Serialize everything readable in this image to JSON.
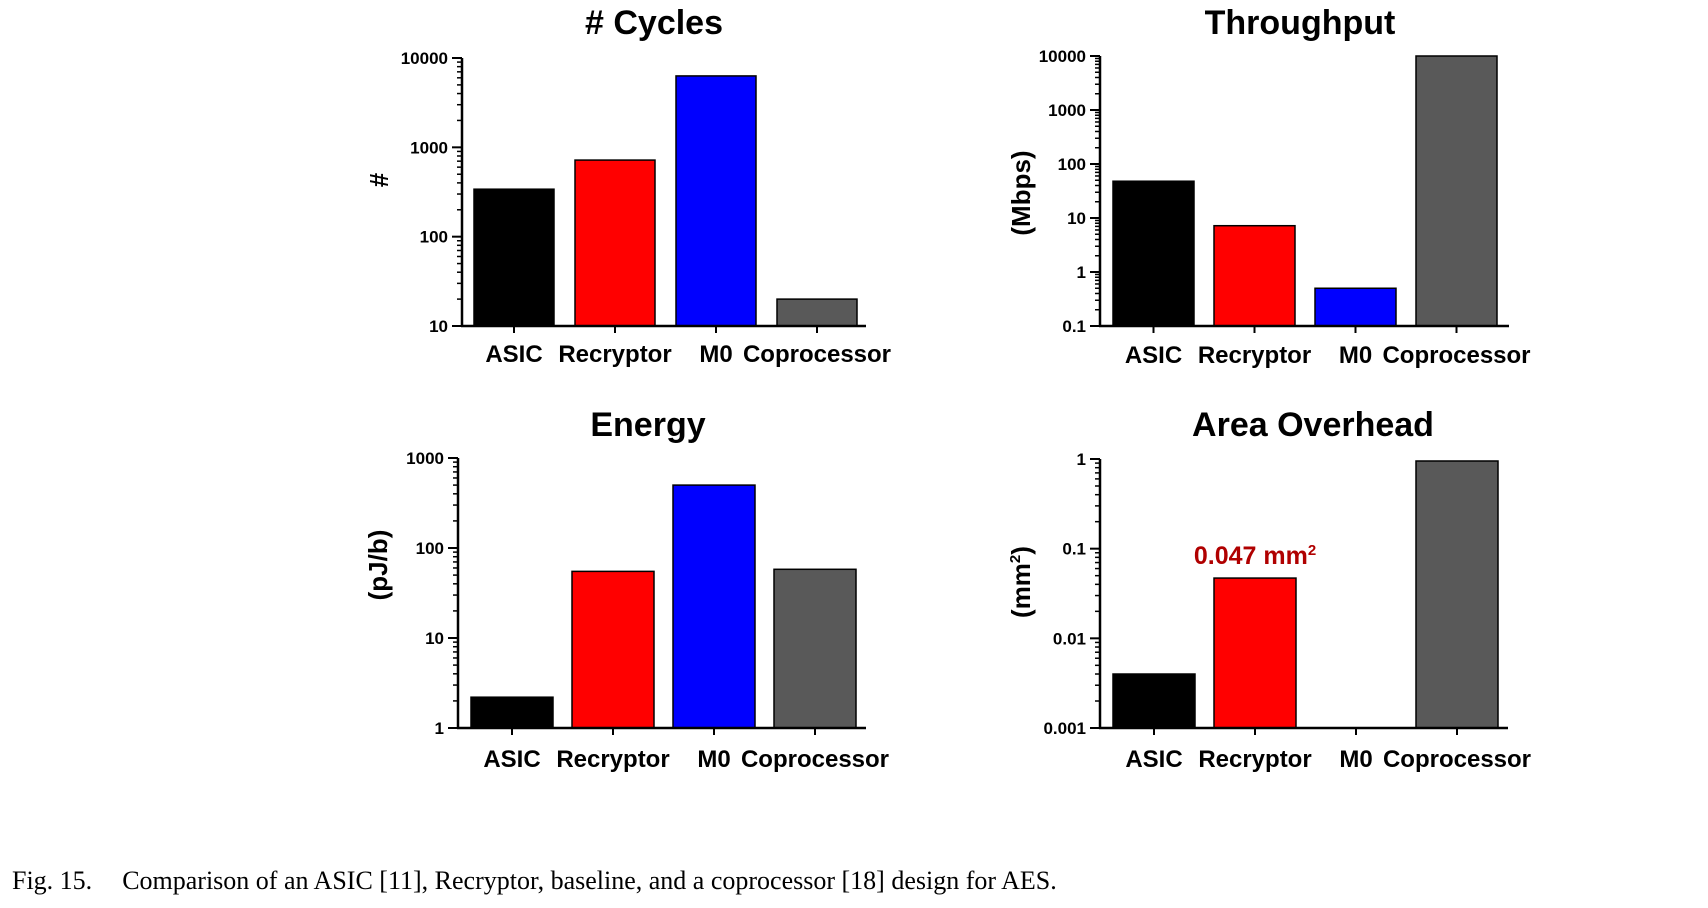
{
  "caption": {
    "figure_label": "Fig. 15.",
    "text": "Comparison of an ASIC [11], Recryptor, baseline, and a coprocessor [18] design for AES."
  },
  "colors": {
    "ASIC": "#000000",
    "Recryptor": "#ff0000",
    "M0": "#0000ff",
    "Coprocessor": "#595959",
    "annotation": "#b00000"
  },
  "chart_data": [
    {
      "type": "bar",
      "title": "# Cycles",
      "xlabel": "",
      "ylabel": "#",
      "yscale": "log",
      "ylim": [
        10,
        10000
      ],
      "yticks": [
        "10",
        "100",
        "1000",
        "10000"
      ],
      "categories": [
        "ASIC",
        "Recryptor",
        "M0",
        "Coprocessor"
      ],
      "values": [
        340,
        720,
        6300,
        20
      ],
      "grid": false,
      "legend": "none"
    },
    {
      "type": "bar",
      "title": "Throughput",
      "xlabel": "",
      "ylabel": "(Mbps)",
      "yscale": "log",
      "ylim": [
        0.1,
        10000
      ],
      "yticks": [
        "0.1",
        "1",
        "10",
        "100",
        "1000",
        "10000"
      ],
      "categories": [
        "ASIC",
        "Recryptor",
        "M0",
        "Coprocessor"
      ],
      "values": [
        48,
        7.2,
        0.5,
        10000
      ],
      "grid": false,
      "legend": "none"
    },
    {
      "type": "bar",
      "title": "Energy",
      "xlabel": "",
      "ylabel": "(pJ/b)",
      "yscale": "log",
      "ylim": [
        1,
        1000
      ],
      "yticks": [
        "1",
        "10",
        "100",
        "1000"
      ],
      "categories": [
        "ASIC",
        "Recryptor",
        "M0",
        "Coprocessor"
      ],
      "values": [
        2.2,
        55,
        500,
        58
      ],
      "grid": false,
      "legend": "none"
    },
    {
      "type": "bar",
      "title": "Area Overhead",
      "xlabel": "",
      "ylabel": "(mm",
      "ylabel_sup": "2",
      "ylabel_end": ")",
      "yscale": "log",
      "ylim": [
        0.001,
        1
      ],
      "yticks": [
        "0.001",
        "0.01",
        "0.1",
        "1"
      ],
      "categories": [
        "ASIC",
        "Recryptor",
        "M0",
        "Coprocessor"
      ],
      "values": [
        0.004,
        0.047,
        0.001,
        0.95
      ],
      "annotation": {
        "category": "Recryptor",
        "text": "0.047 mm",
        "sup": "2"
      },
      "grid": false,
      "legend": "none"
    }
  ]
}
